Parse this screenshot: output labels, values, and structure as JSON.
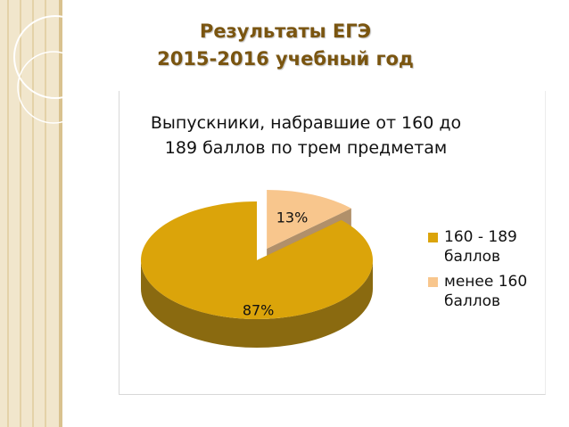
{
  "slide": {
    "title_line1": "Результаты ЕГЭ",
    "title_line2": "2015-2016 учебный год"
  },
  "colors": {
    "series_main": "#dba40a",
    "series_main_dark": "#8a6a10",
    "series_small": "#f8c68d",
    "series_small_dark": "#a8845a",
    "title_color": "#7a5510",
    "side_strip": "#f1e6cc"
  },
  "chart_data": {
    "type": "pie",
    "style": "3d",
    "title_line1": "Выпускники, набравшие от 160 до",
    "title_line2": "189 баллов по трем предметам",
    "legend_position": "right",
    "slices": [
      {
        "label_line1": "160 - 189",
        "label_line2": "баллов",
        "value": 87,
        "data_label": "87%",
        "exploded": false
      },
      {
        "label_line1": "менее 160",
        "label_line2": "баллов",
        "value": 13,
        "data_label": "13%",
        "exploded": true
      }
    ]
  }
}
